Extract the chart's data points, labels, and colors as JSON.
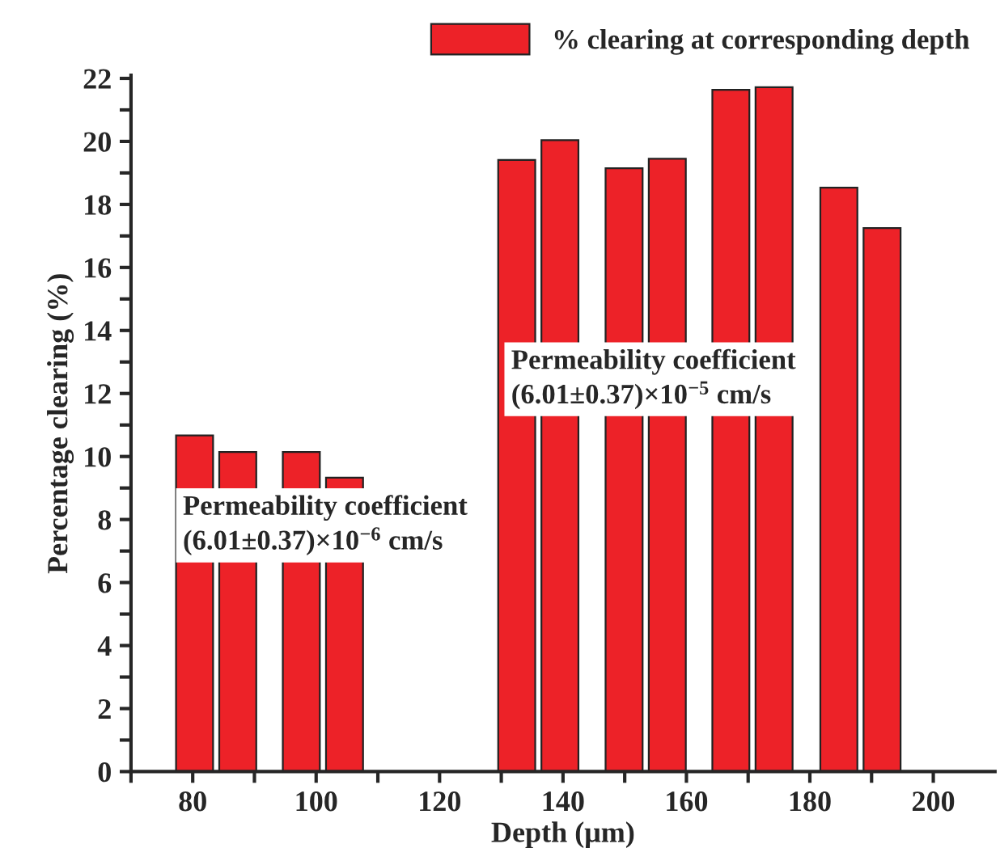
{
  "chart_data": {
    "type": "bar",
    "xlabel": "Depth (μm)",
    "ylabel": "Percentage clearing (%)",
    "x": [
      80.3,
      87.3,
      97.6,
      104.6,
      132.5,
      139.5,
      149.9,
      156.9,
      167.2,
      174.2,
      184.7,
      191.7
    ],
    "series": [
      {
        "name": "% clearing at corresponding depth",
        "color": "#ed2228",
        "values": [
          10.67,
          10.14,
          10.14,
          9.33,
          19.41,
          20.04,
          19.15,
          19.45,
          21.64,
          21.72,
          18.53,
          17.25
        ]
      }
    ],
    "xlim": [
      70,
      210
    ],
    "xticks": [
      {
        "value": 70,
        "label": null
      },
      80,
      {
        "value": 90,
        "label": null
      },
      100,
      {
        "value": 110,
        "label": null
      },
      120,
      {
        "value": 130,
        "label": null
      },
      140,
      {
        "value": 150,
        "label": null
      },
      160,
      {
        "value": 170,
        "label": null
      },
      180,
      {
        "value": 190,
        "label": null
      },
      200
    ],
    "ylim": [
      0,
      22.1
    ],
    "yticks": [
      0,
      {
        "value": 1,
        "label": null
      },
      2,
      {
        "value": 3,
        "label": null
      },
      4,
      {
        "value": 5,
        "label": null
      },
      6,
      {
        "value": 7,
        "label": null
      },
      8,
      {
        "value": 9,
        "label": null
      },
      10,
      {
        "value": 11,
        "label": null
      },
      12,
      {
        "value": 13,
        "label": null
      },
      14,
      {
        "value": 15,
        "label": null
      },
      16,
      {
        "value": 17,
        "label": null
      },
      18,
      {
        "value": 19,
        "label": null
      },
      20,
      {
        "value": 21,
        "label": null
      },
      22
    ],
    "annotations": [
      "Permeability coefficient\n(6.01±0.37)×10$^{−6}$ cm/s",
      "Permeability coefficient\n(6.01±0.37)×10$^{−5}$ cm/s"
    ],
    "legend": "top right",
    "grid": false
  }
}
